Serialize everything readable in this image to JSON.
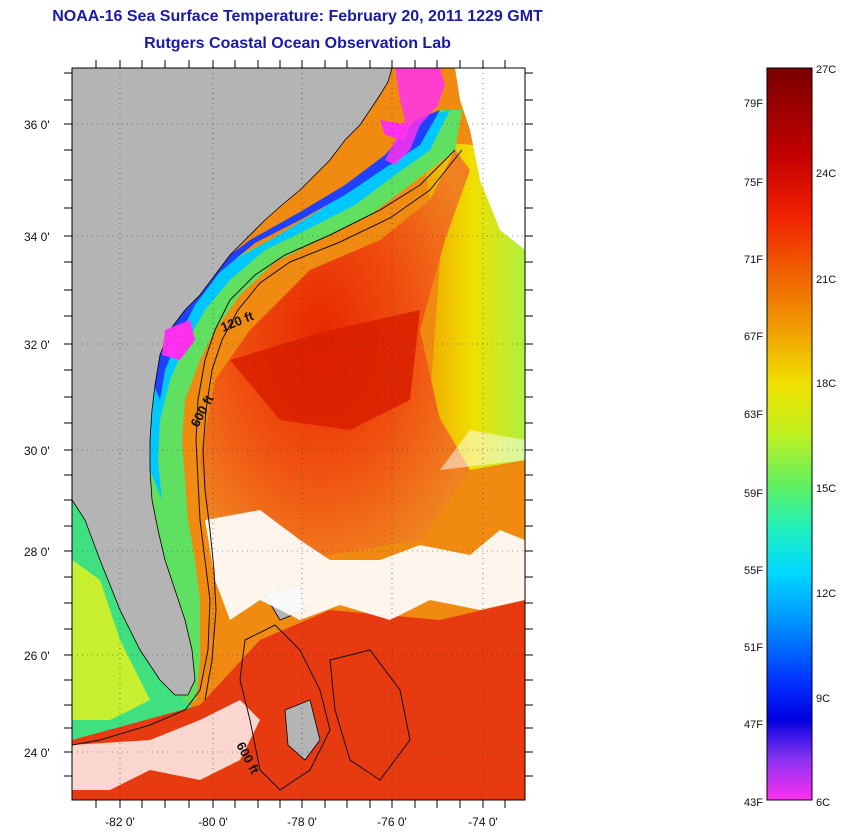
{
  "header": {
    "title": "NOAA-16 Sea Surface Temperature:  February 20, 2011 1229 GMT",
    "subtitle": "Rutgers Coastal Ocean Observation Lab"
  },
  "map": {
    "lat_ticks": [
      "36 0'",
      "34 0'",
      "32 0'",
      "30 0'",
      "28 0'",
      "26 0'",
      "24 0'"
    ],
    "lon_ticks": [
      "-82 0'",
      "-80 0'",
      "-78 0'",
      "-76 0'",
      "-74 0'"
    ],
    "contours": [
      "120 ft",
      "600 ft",
      "600 ft"
    ],
    "colors": {
      "land": "#b4b4b4",
      "cloud": "#ffffff",
      "coastline": "#000000"
    }
  },
  "colorbar": {
    "fahrenheit": [
      "79F",
      "75F",
      "71F",
      "67F",
      "63F",
      "59F",
      "55F",
      "51F",
      "47F",
      "43F"
    ],
    "celsius": [
      "27C",
      "24C",
      "21C",
      "18C",
      "15C",
      "12C",
      "9C",
      "6C"
    ],
    "gradient_stops": [
      "#7a0000",
      "#c40000",
      "#f02000",
      "#f06000",
      "#f0a000",
      "#f0e000",
      "#c0f020",
      "#60f060",
      "#20f0c0",
      "#00d8ff",
      "#0090ff",
      "#0030ff",
      "#0000e0",
      "#8030f0",
      "#ff30f0"
    ]
  }
}
